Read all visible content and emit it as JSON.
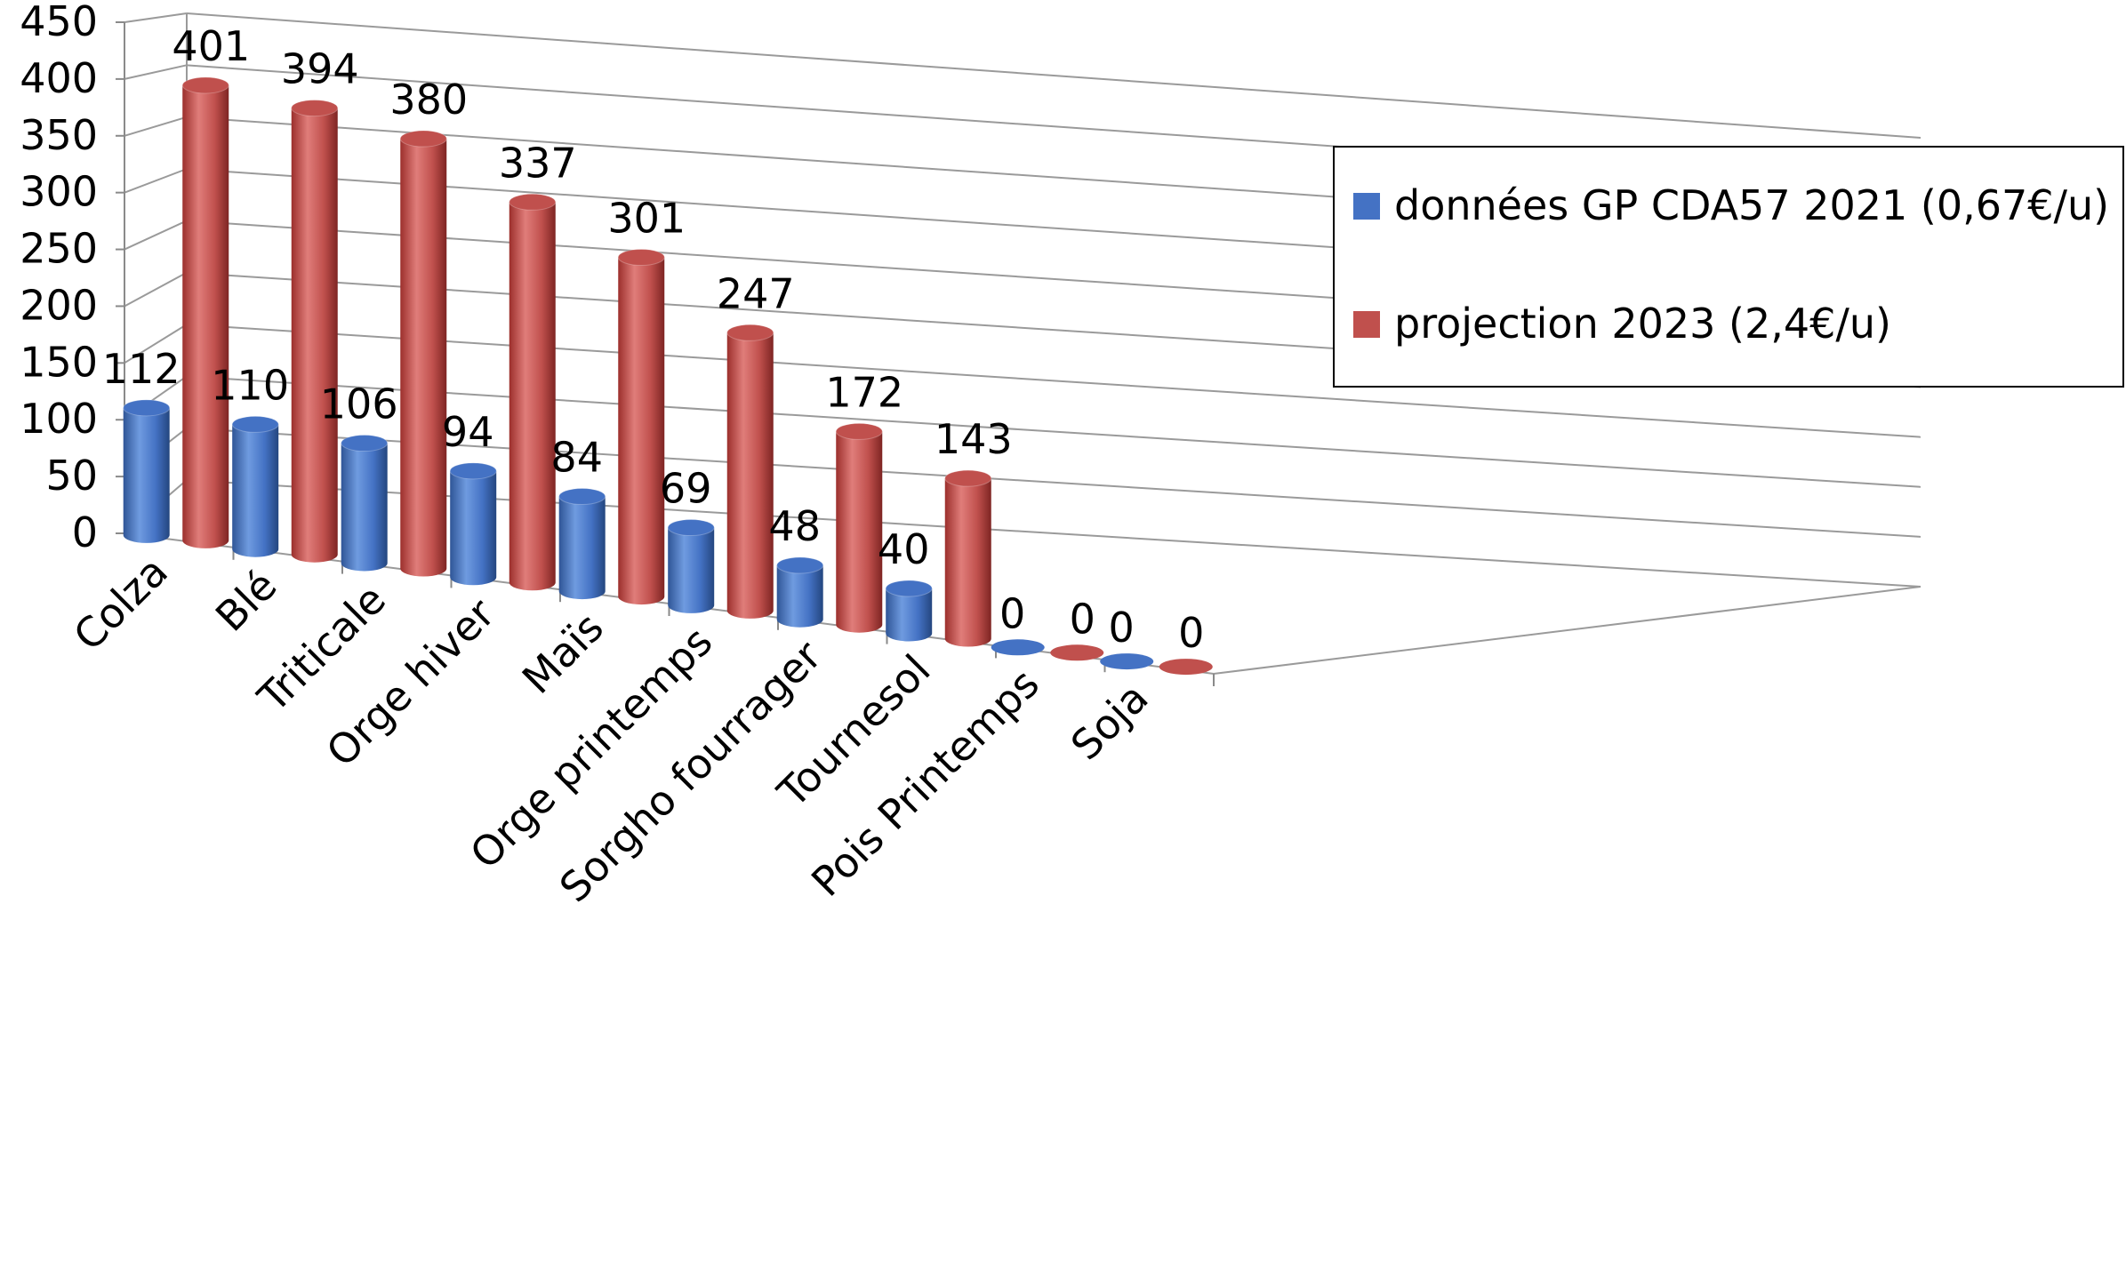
{
  "chart_data": {
    "type": "bar",
    "style": "3d-cylinder",
    "categories": [
      "Colza",
      "Blé",
      "Triticale",
      "Orge hiver",
      "Maïs",
      "Orge printemps",
      "Sorgho fourrager",
      "Tournesol",
      "Pois Printemps",
      "Soja"
    ],
    "series": [
      {
        "name": "données GP CDA57 2021 (0,67€/u)",
        "values": [
          112,
          110,
          106,
          94,
          84,
          69,
          48,
          40,
          0,
          0
        ],
        "color": "#4472c4"
      },
      {
        "name": "projection 2023 (2,4€/u)",
        "values": [
          401,
          394,
          380,
          337,
          301,
          247,
          172,
          143,
          0,
          0
        ],
        "color": "#c0504d"
      }
    ],
    "yticks": [
      "0",
      "50",
      "100",
      "150",
      "200",
      "250",
      "300",
      "350",
      "400",
      "450"
    ],
    "ylim": [
      0,
      450
    ],
    "grid": true,
    "legend_position": "top-right",
    "data_labels": true
  }
}
